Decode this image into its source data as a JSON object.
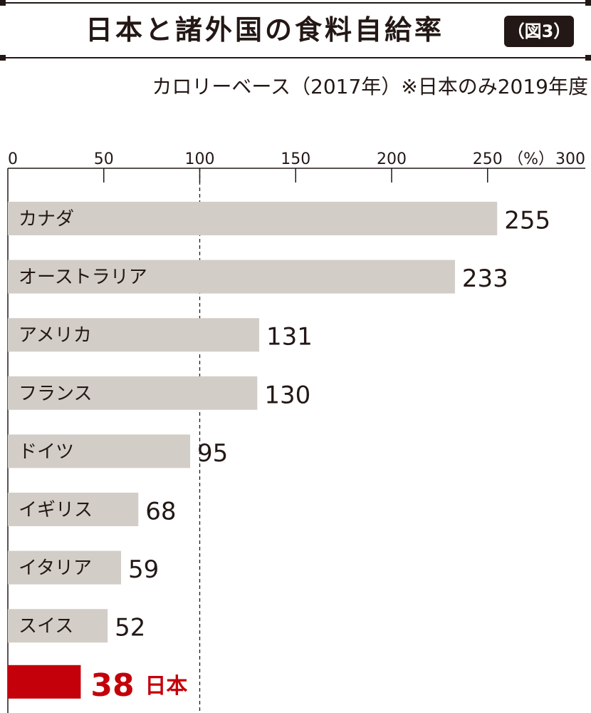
{
  "title": "日本と諸外国の食料自給率",
  "figure_label": "（図3）",
  "subtitle": "カロリーベース（2017年）※日本のみ2019年度",
  "colors": {
    "bar": "#d3cdc8",
    "highlight": "#c4000b",
    "ink": "#231815"
  },
  "chart_data": {
    "type": "bar",
    "orientation": "horizontal",
    "unit_label": "（%）",
    "xlim": [
      0,
      300
    ],
    "xticks": [
      0,
      50,
      100,
      150,
      200,
      250,
      300
    ],
    "reference_line": 100,
    "categories": [
      "カナダ",
      "オーストラリア",
      "アメリカ",
      "フランス",
      "ドイツ",
      "イギリス",
      "イタリア",
      "スイス",
      "日本"
    ],
    "values": [
      255,
      233,
      131,
      130,
      95,
      68,
      59,
      52,
      38
    ],
    "highlight": "日本"
  }
}
